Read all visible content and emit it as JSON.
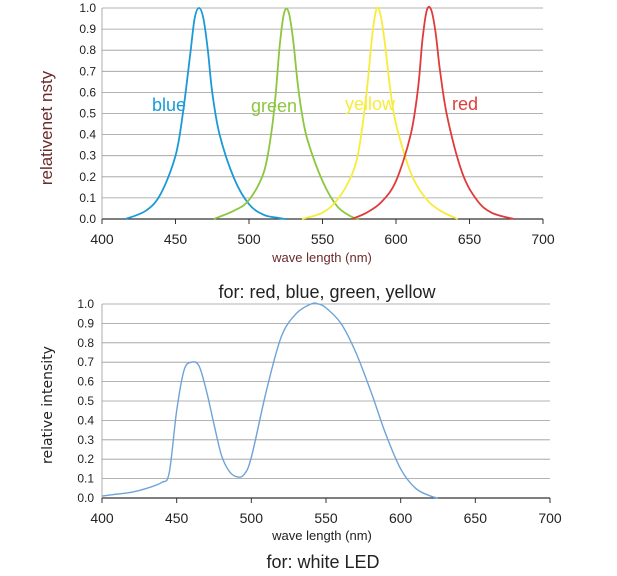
{
  "chart_data": [
    {
      "type": "line",
      "caption": "for: red, blue, green, yellow",
      "xlabel": "wave length (nm)",
      "ylabel": "relativenet nsty",
      "xlim": [
        400,
        700
      ],
      "ylim": [
        0,
        1
      ],
      "xticks": [
        "400",
        "450",
        "500",
        "550",
        "600",
        "650",
        "700"
      ],
      "yticks": [
        "0.0",
        "0.1",
        "0.2",
        "0.3",
        "0.4",
        "0.5",
        "0.6",
        "0.7",
        "0.8",
        "0.9",
        "1.0"
      ],
      "grid": true,
      "series": [
        {
          "name": "blue",
          "color": "#1a9ad6",
          "x": [
            416,
            430,
            440,
            450,
            455,
            460,
            463,
            466,
            469,
            472,
            475,
            480,
            490,
            500,
            510,
            520,
            525
          ],
          "y": [
            0.0,
            0.04,
            0.12,
            0.3,
            0.5,
            0.78,
            0.95,
            1.0,
            0.95,
            0.8,
            0.6,
            0.4,
            0.19,
            0.07,
            0.02,
            0.005,
            0.0
          ]
        },
        {
          "name": "green",
          "color": "#8dc63f",
          "x": [
            476,
            490,
            500,
            510,
            515,
            518,
            521,
            524,
            527,
            530,
            533,
            536,
            540,
            550,
            560,
            570,
            575
          ],
          "y": [
            0.0,
            0.04,
            0.09,
            0.22,
            0.4,
            0.58,
            0.83,
            0.98,
            0.98,
            0.85,
            0.65,
            0.5,
            0.37,
            0.18,
            0.06,
            0.01,
            0.0
          ]
        },
        {
          "name": "yellow",
          "color": "#f7ec3c",
          "x": [
            536,
            550,
            560,
            570,
            575,
            580,
            584,
            587,
            590,
            593,
            596,
            600,
            610,
            620,
            630,
            642
          ],
          "y": [
            0.0,
            0.03,
            0.09,
            0.21,
            0.34,
            0.6,
            0.88,
            1.0,
            0.95,
            0.8,
            0.62,
            0.45,
            0.22,
            0.1,
            0.04,
            0.0
          ]
        },
        {
          "name": "red",
          "color": "#e03b3b",
          "x": [
            570,
            580,
            590,
            600,
            610,
            615,
            618,
            621,
            624,
            627,
            630,
            635,
            645,
            655,
            665,
            680
          ],
          "y": [
            0.0,
            0.03,
            0.08,
            0.18,
            0.4,
            0.62,
            0.85,
            0.99,
            0.99,
            0.88,
            0.7,
            0.48,
            0.22,
            0.09,
            0.03,
            0.0
          ]
        }
      ]
    },
    {
      "type": "line",
      "caption": "for: white LED",
      "xlabel": "wave length (nm)",
      "ylabel": "relative intensity",
      "xlim": [
        400,
        700
      ],
      "ylim": [
        0,
        1
      ],
      "xticks": [
        "400",
        "450",
        "500",
        "550",
        "600",
        "650",
        "700"
      ],
      "yticks": [
        "0.0",
        "0.1",
        "0.2",
        "0.3",
        "0.4",
        "0.5",
        "0.6",
        "0.7",
        "0.8",
        "0.9",
        "1.0"
      ],
      "grid": true,
      "series": [
        {
          "color": "#6ea3d8",
          "x": [
            400,
            410,
            420,
            430,
            440,
            445,
            450,
            455,
            460,
            465,
            470,
            475,
            480,
            485,
            490,
            495,
            500,
            510,
            520,
            530,
            540,
            545,
            550,
            560,
            570,
            580,
            590,
            600,
            610,
            620,
            625
          ],
          "y": [
            0.01,
            0.02,
            0.03,
            0.05,
            0.08,
            0.13,
            0.45,
            0.66,
            0.7,
            0.68,
            0.55,
            0.38,
            0.22,
            0.14,
            0.11,
            0.12,
            0.21,
            0.55,
            0.83,
            0.95,
            1.0,
            1.0,
            0.98,
            0.9,
            0.75,
            0.55,
            0.33,
            0.15,
            0.05,
            0.01,
            0.0
          ]
        }
      ]
    }
  ]
}
